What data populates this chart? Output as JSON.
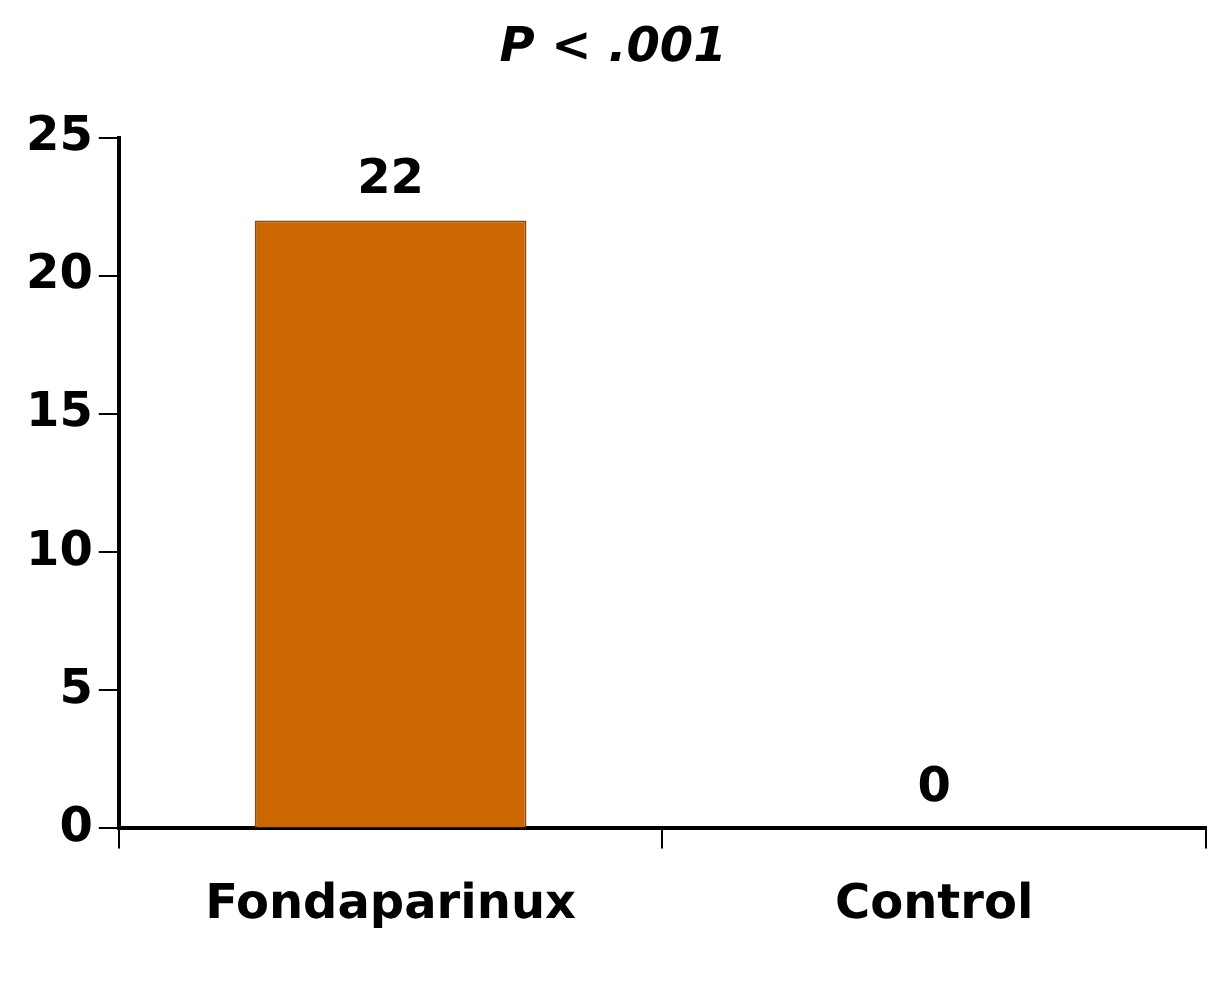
{
  "chart_data": {
    "type": "bar",
    "title": "P < .001",
    "categories": [
      "Fondaparinux",
      "Control"
    ],
    "values": [
      22,
      0
    ],
    "color": "#cc6600",
    "ylim": [
      0,
      25
    ],
    "yticks": [
      0,
      5,
      10,
      15,
      20,
      25
    ],
    "grid": false,
    "legend": false,
    "data_labels": true
  }
}
